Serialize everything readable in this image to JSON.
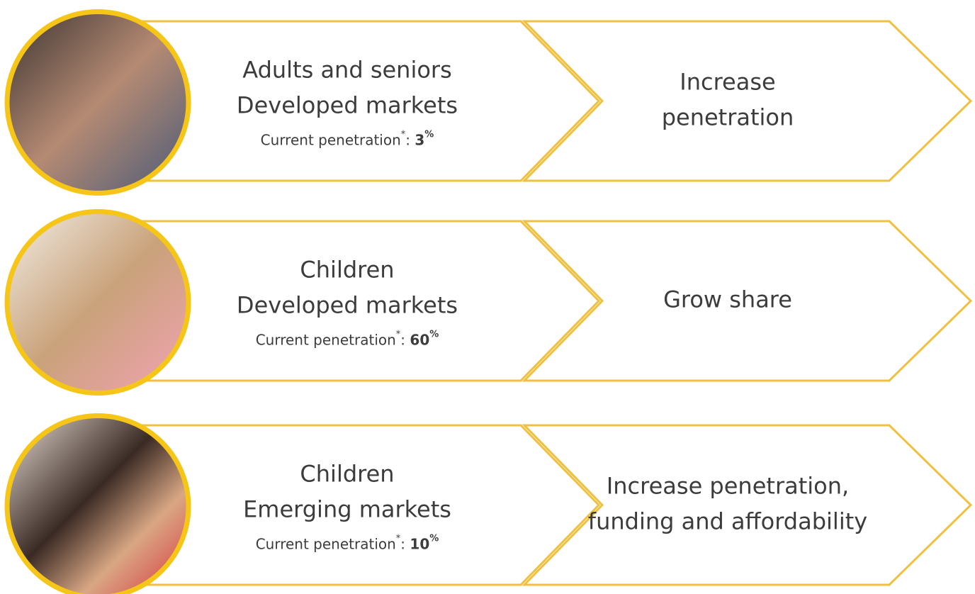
{
  "rows": [
    {
      "segment": [
        "Adults and seniors",
        "Developed markets"
      ],
      "penetration_label": "Current penetration",
      "footnote_mark": "*",
      "separator": ":",
      "value": 3,
      "unit": "%",
      "strategy": [
        "Increase",
        "penetration"
      ]
    },
    {
      "segment": [
        "Children",
        "Developed markets"
      ],
      "penetration_label": "Current penetration",
      "footnote_mark": "*",
      "separator": ":",
      "value": 60,
      "unit": "%",
      "strategy": [
        "Grow share"
      ]
    },
    {
      "segment": [
        "Children",
        "Emerging markets"
      ],
      "penetration_label": "Current penetration",
      "footnote_mark": "*",
      "separator": ":",
      "value": 10,
      "unit": "%",
      "strategy": [
        "Increase penetration,",
        "funding and affordability"
      ]
    }
  ]
}
